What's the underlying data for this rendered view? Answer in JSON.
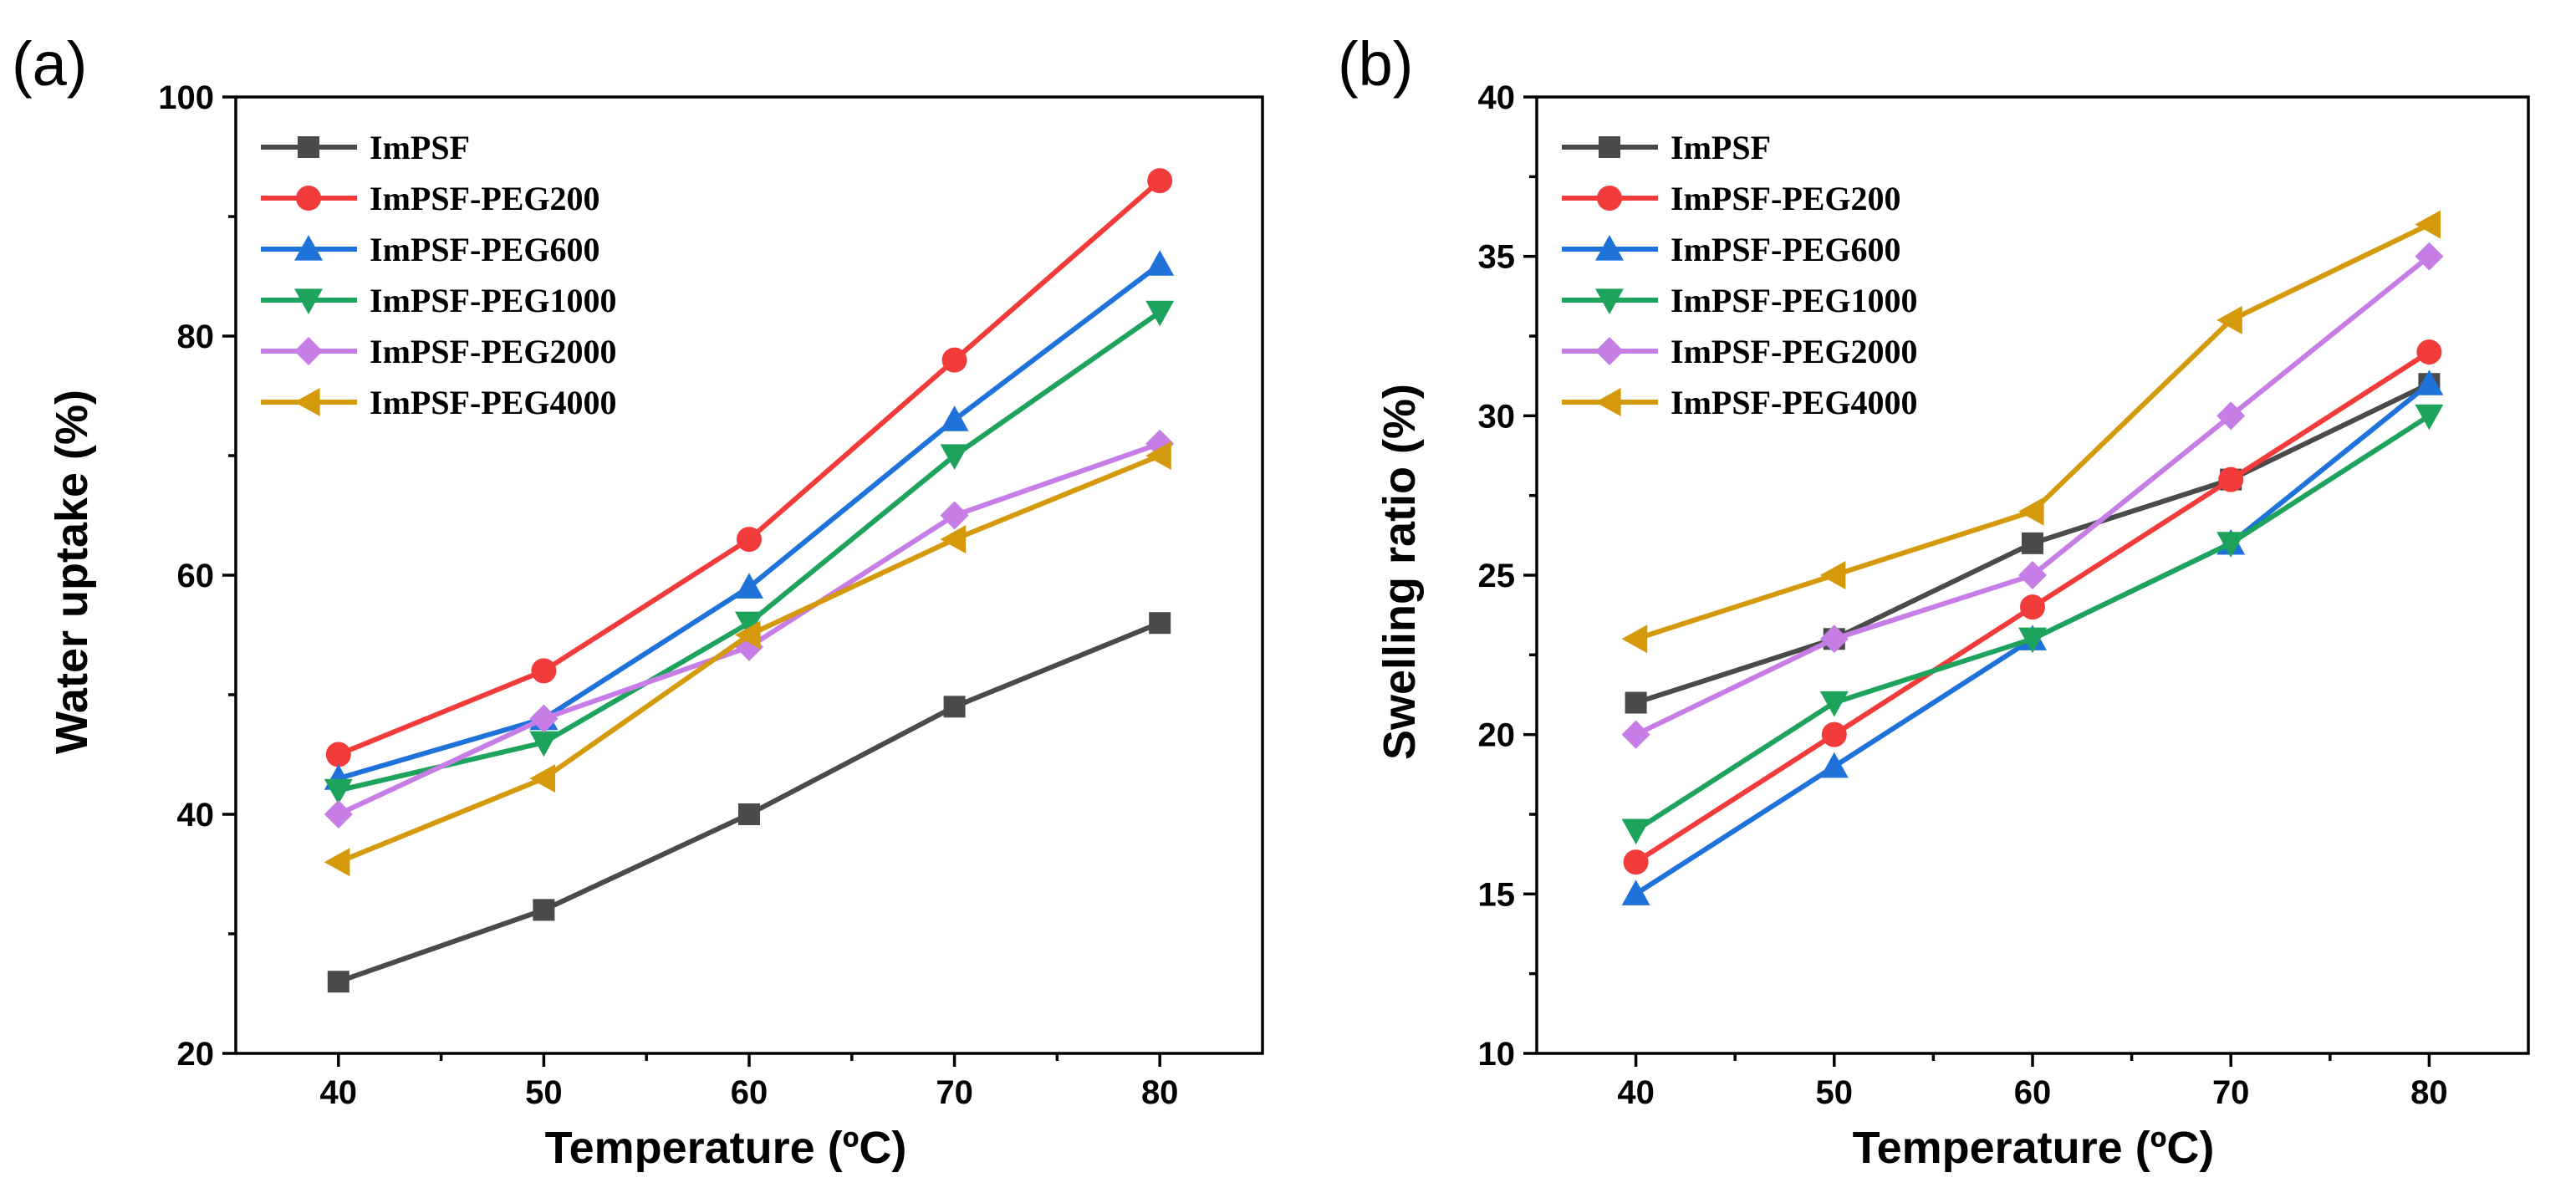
{
  "chart_data": [
    {
      "type": "line",
      "panel_label": "(a)",
      "xlabel": "Temperature (ºC)",
      "ylabel": "Water uptake (%)",
      "x": [
        40,
        50,
        60,
        70,
        80
      ],
      "xlim": [
        35,
        85
      ],
      "ylim": [
        20,
        100
      ],
      "xticks": [
        40,
        50,
        60,
        70,
        80
      ],
      "yticks": [
        20,
        40,
        60,
        80,
        100
      ],
      "grid": false,
      "legend_position": "top-left",
      "series": [
        {
          "name": "ImPSF",
          "color": "#4a4a4a",
          "marker": "square",
          "values": [
            26,
            32,
            40,
            49,
            56
          ]
        },
        {
          "name": "ImPSF-PEG200",
          "color": "#f23c3c",
          "marker": "circle",
          "values": [
            45,
            52,
            63,
            78,
            93
          ]
        },
        {
          "name": "ImPSF-PEG600",
          "color": "#1f72d9",
          "marker": "triangle-up",
          "values": [
            43,
            48,
            59,
            73,
            86
          ]
        },
        {
          "name": "ImPSF-PEG1000",
          "color": "#1ea35c",
          "marker": "triangle-down",
          "values": [
            42,
            46,
            56,
            70,
            82
          ]
        },
        {
          "name": "ImPSF-PEG2000",
          "color": "#c77de6",
          "marker": "diamond",
          "values": [
            40,
            48,
            54,
            65,
            71
          ]
        },
        {
          "name": "ImPSF-PEG4000",
          "color": "#d49a0c",
          "marker": "triangle-left",
          "values": [
            36,
            43,
            55,
            63,
            70
          ]
        }
      ]
    },
    {
      "type": "line",
      "panel_label": "(b)",
      "xlabel": "Temperature (ºC)",
      "ylabel": "Swelling ratio (%)",
      "x": [
        40,
        50,
        60,
        70,
        80
      ],
      "xlim": [
        35,
        85
      ],
      "ylim": [
        10,
        40
      ],
      "xticks": [
        40,
        50,
        60,
        70,
        80
      ],
      "yticks": [
        10,
        15,
        20,
        25,
        30,
        35,
        40
      ],
      "grid": false,
      "legend_position": "top-left",
      "series": [
        {
          "name": "ImPSF",
          "color": "#4a4a4a",
          "marker": "square",
          "values": [
            21,
            23,
            26,
            28,
            31
          ]
        },
        {
          "name": "ImPSF-PEG200",
          "color": "#f23c3c",
          "marker": "circle",
          "values": [
            16,
            20,
            24,
            28,
            32
          ]
        },
        {
          "name": "ImPSF-PEG600",
          "color": "#1f72d9",
          "marker": "triangle-up",
          "values": [
            15,
            19,
            23,
            26,
            31
          ]
        },
        {
          "name": "ImPSF-PEG1000",
          "color": "#1ea35c",
          "marker": "triangle-down",
          "values": [
            17,
            21,
            23,
            26,
            30
          ]
        },
        {
          "name": "ImPSF-PEG2000",
          "color": "#c77de6",
          "marker": "diamond",
          "values": [
            20,
            23,
            25,
            30,
            35
          ]
        },
        {
          "name": "ImPSF-PEG4000",
          "color": "#d49a0c",
          "marker": "triangle-left",
          "values": [
            23,
            25,
            27,
            33,
            36
          ]
        }
      ]
    }
  ]
}
